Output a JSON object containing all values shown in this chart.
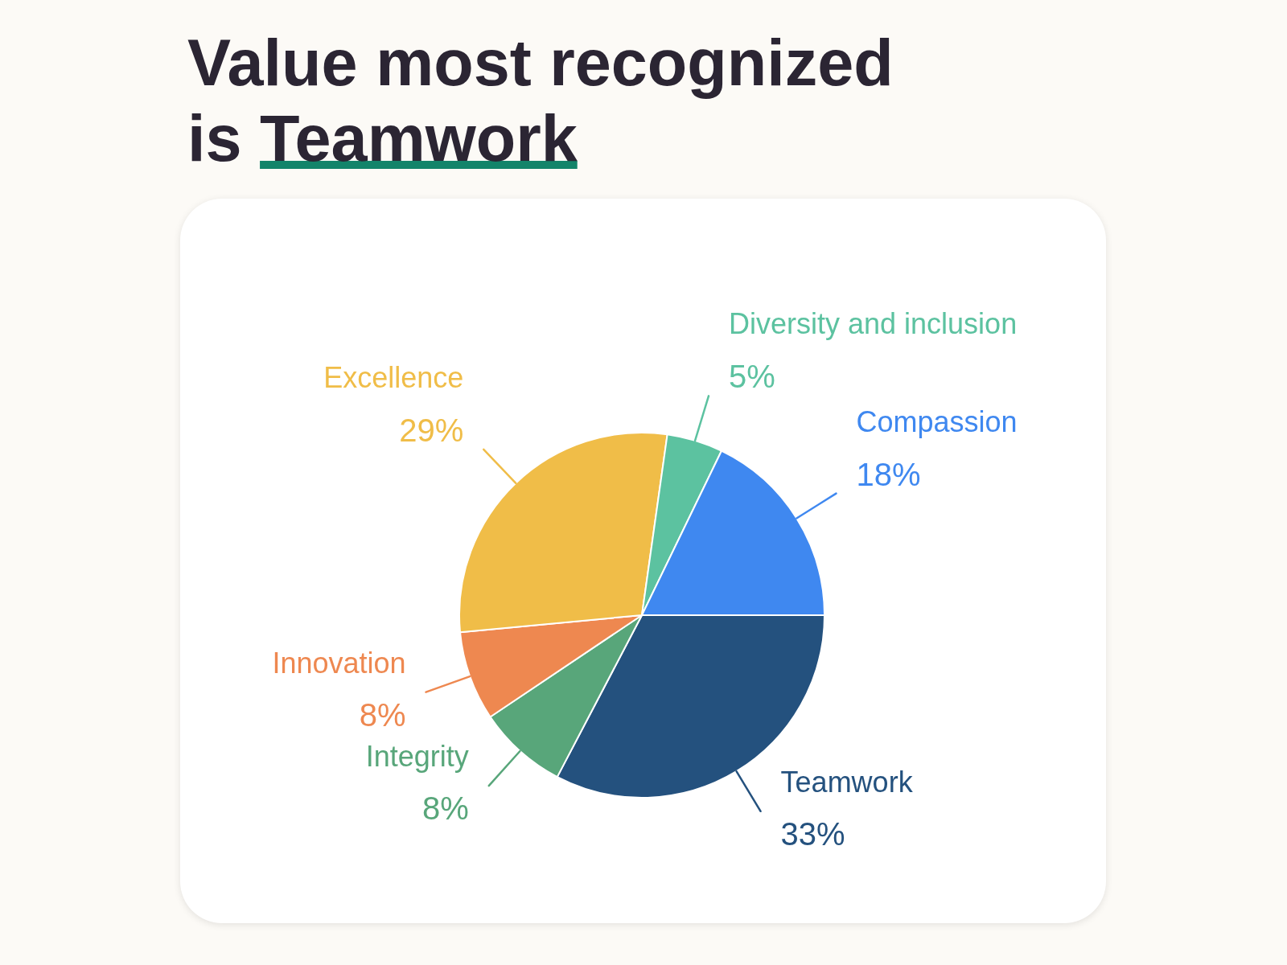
{
  "chart_data": {
    "type": "pie",
    "title": "Value most recognized is Teamwork",
    "categories": [
      "Teamwork",
      "Integrity",
      "Innovation",
      "Excellence",
      "Diversity and inclusion",
      "Compassion"
    ],
    "values": [
      33,
      8,
      8,
      29,
      5,
      18
    ],
    "value_labels": [
      "33%",
      "8%",
      "8%",
      "29%",
      "5%",
      "18%"
    ],
    "colors": [
      "#24517e",
      "#58a67a",
      "#ee8850",
      "#f0bd48",
      "#5cc2a0",
      "#3f88f0"
    ]
  }
}
